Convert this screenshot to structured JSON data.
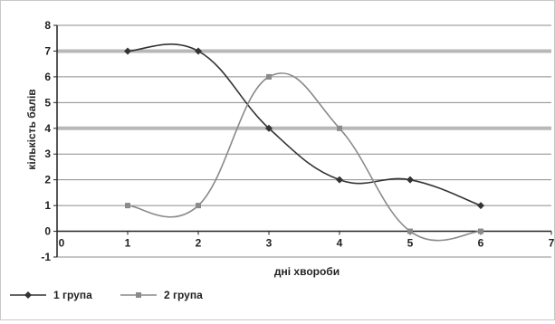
{
  "chart_data": {
    "type": "line",
    "xlabel": "дні хвороби",
    "ylabel": "кількість балів",
    "xlim": [
      0,
      7
    ],
    "ylim": [
      -1,
      8
    ],
    "x_ticks": [
      "0",
      "1",
      "2",
      "3",
      "4",
      "5",
      "6",
      "7"
    ],
    "y_ticks": [
      "-1",
      "0",
      "1",
      "2",
      "3",
      "4",
      "5",
      "6",
      "7",
      "8"
    ],
    "grid": "horizontal",
    "legend_position": "bottom-left",
    "series": [
      {
        "name": "1 група",
        "marker": "diamond",
        "color": "#333333",
        "x": [
          1,
          2,
          3,
          4,
          5,
          6
        ],
        "y": [
          7,
          7,
          4,
          2,
          2,
          1
        ]
      },
      {
        "name": "2 група",
        "marker": "square",
        "color": "#8a8a8a",
        "x": [
          1,
          2,
          3,
          4,
          5,
          6
        ],
        "y": [
          1,
          1,
          6,
          4,
          0,
          0
        ]
      }
    ]
  }
}
